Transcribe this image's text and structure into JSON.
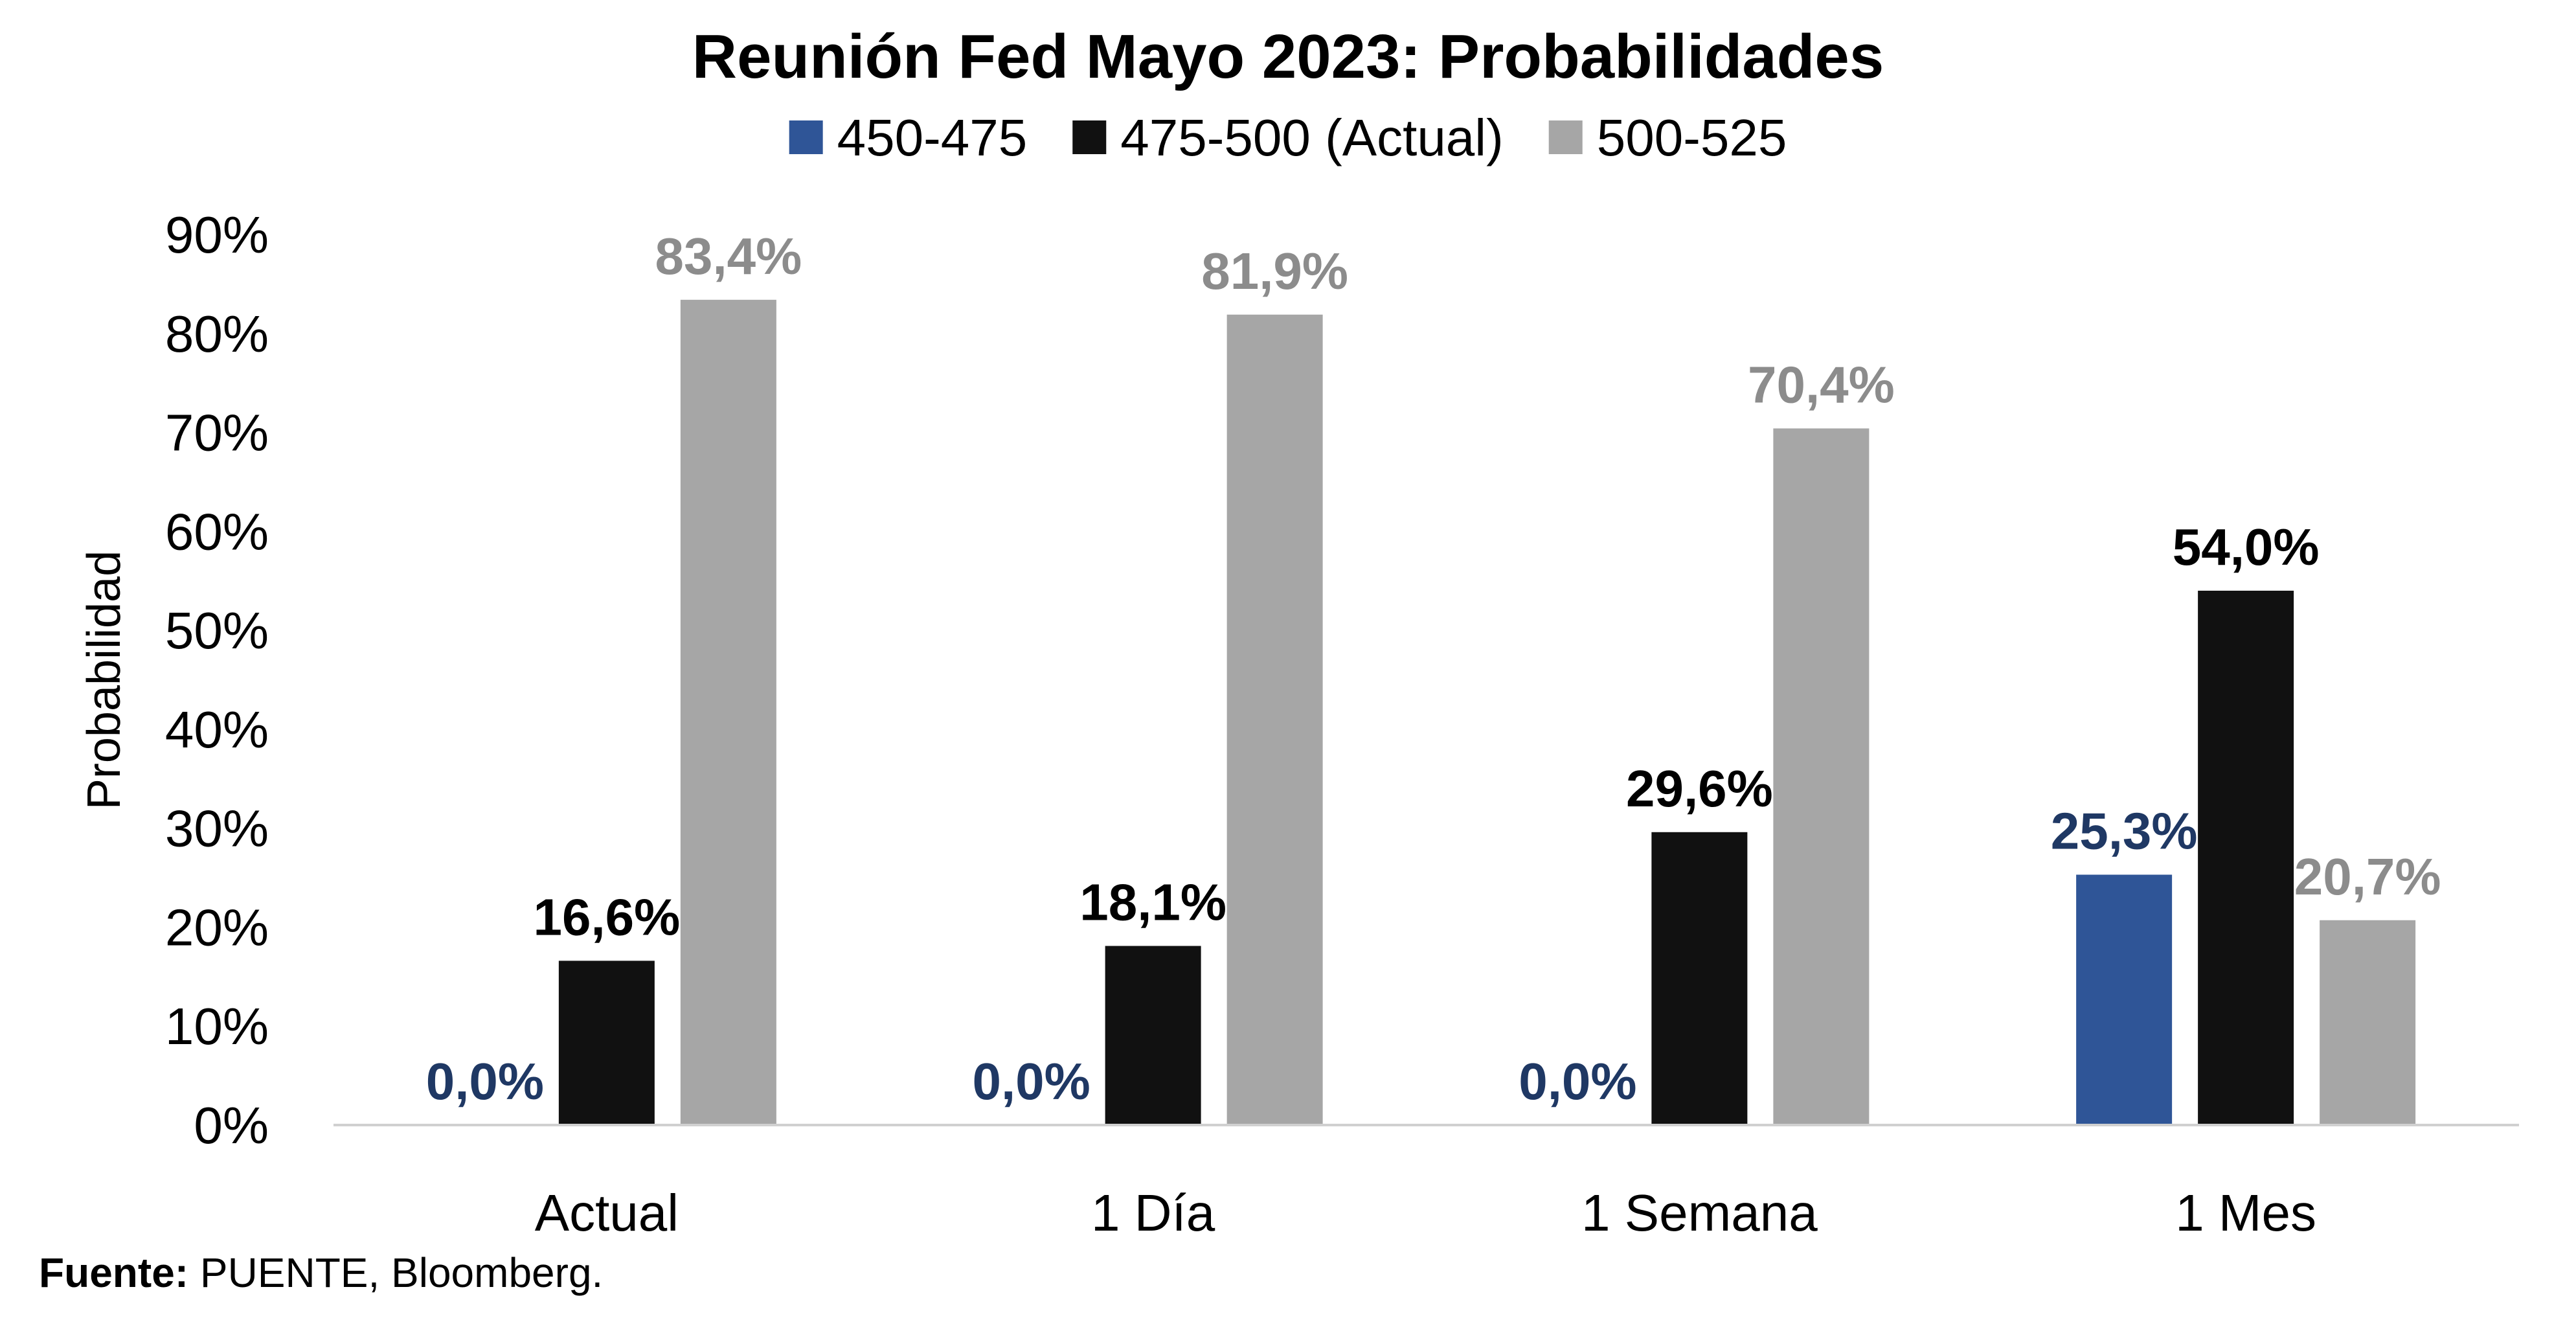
{
  "chart_data": {
    "type": "bar",
    "title": "Reunión Fed Mayo 2023: Probabilidades",
    "ylabel": "Probabilidad",
    "xlabel": "",
    "categories": [
      "Actual",
      "1 Día",
      "1 Semana",
      "1 Mes"
    ],
    "series": [
      {
        "name": "450-475",
        "color": "#2F5597",
        "label_color": "#1F3864",
        "values": [
          0.0,
          0.0,
          0.0,
          25.3
        ],
        "labels": [
          "0,0%",
          "0,0%",
          "0,0%",
          "25,3%"
        ]
      },
      {
        "name": "475-500 (Actual)",
        "color": "#111111",
        "label_color": "#000000",
        "values": [
          16.6,
          18.1,
          29.6,
          54.0
        ],
        "labels": [
          "16,6%",
          "18,1%",
          "29,6%",
          "54,0%"
        ]
      },
      {
        "name": "500-525",
        "color": "#A6A6A6",
        "label_color": "#8C8C8C",
        "values": [
          83.4,
          81.9,
          70.4,
          20.7
        ],
        "labels": [
          "83,4%",
          "81,9%",
          "70,4%",
          "20,7%"
        ]
      }
    ],
    "ylim": [
      0,
      90
    ],
    "yticks": [
      0,
      10,
      20,
      30,
      40,
      50,
      60,
      70,
      80,
      90
    ],
    "ytick_labels": [
      "0%",
      "10%",
      "20%",
      "30%",
      "40%",
      "50%",
      "60%",
      "70%",
      "80%",
      "90%"
    ],
    "grid": false,
    "legend_position": "top"
  },
  "source": {
    "label": "Fuente:",
    "text": " PUENTE, Bloomberg."
  }
}
